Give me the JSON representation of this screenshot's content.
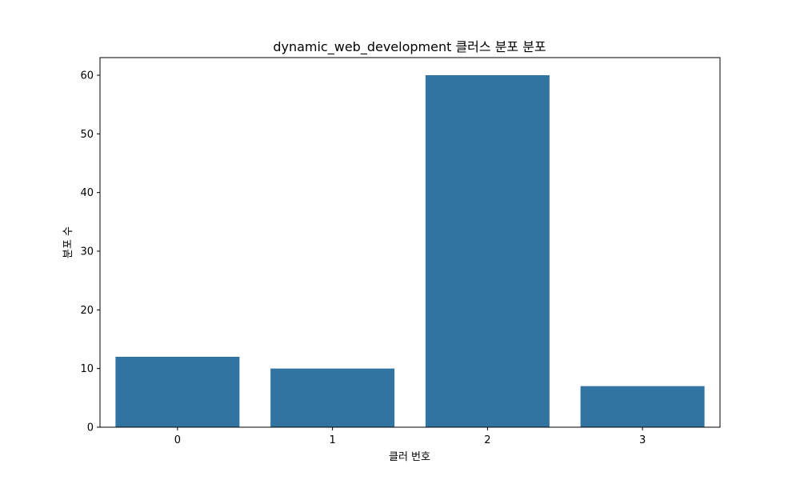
{
  "chart_data": {
    "type": "bar",
    "title": "dynamic_web_development 클러스 분포 분포",
    "xlabel": "클러 번호",
    "ylabel": "분포 수",
    "categories": [
      "0",
      "1",
      "2",
      "3"
    ],
    "values": [
      12,
      10,
      60,
      7
    ],
    "ylim": [
      0,
      63
    ],
    "yticks": [
      0,
      10,
      20,
      30,
      40,
      50,
      60
    ],
    "grid": false,
    "bar_color": "#3274a1"
  }
}
